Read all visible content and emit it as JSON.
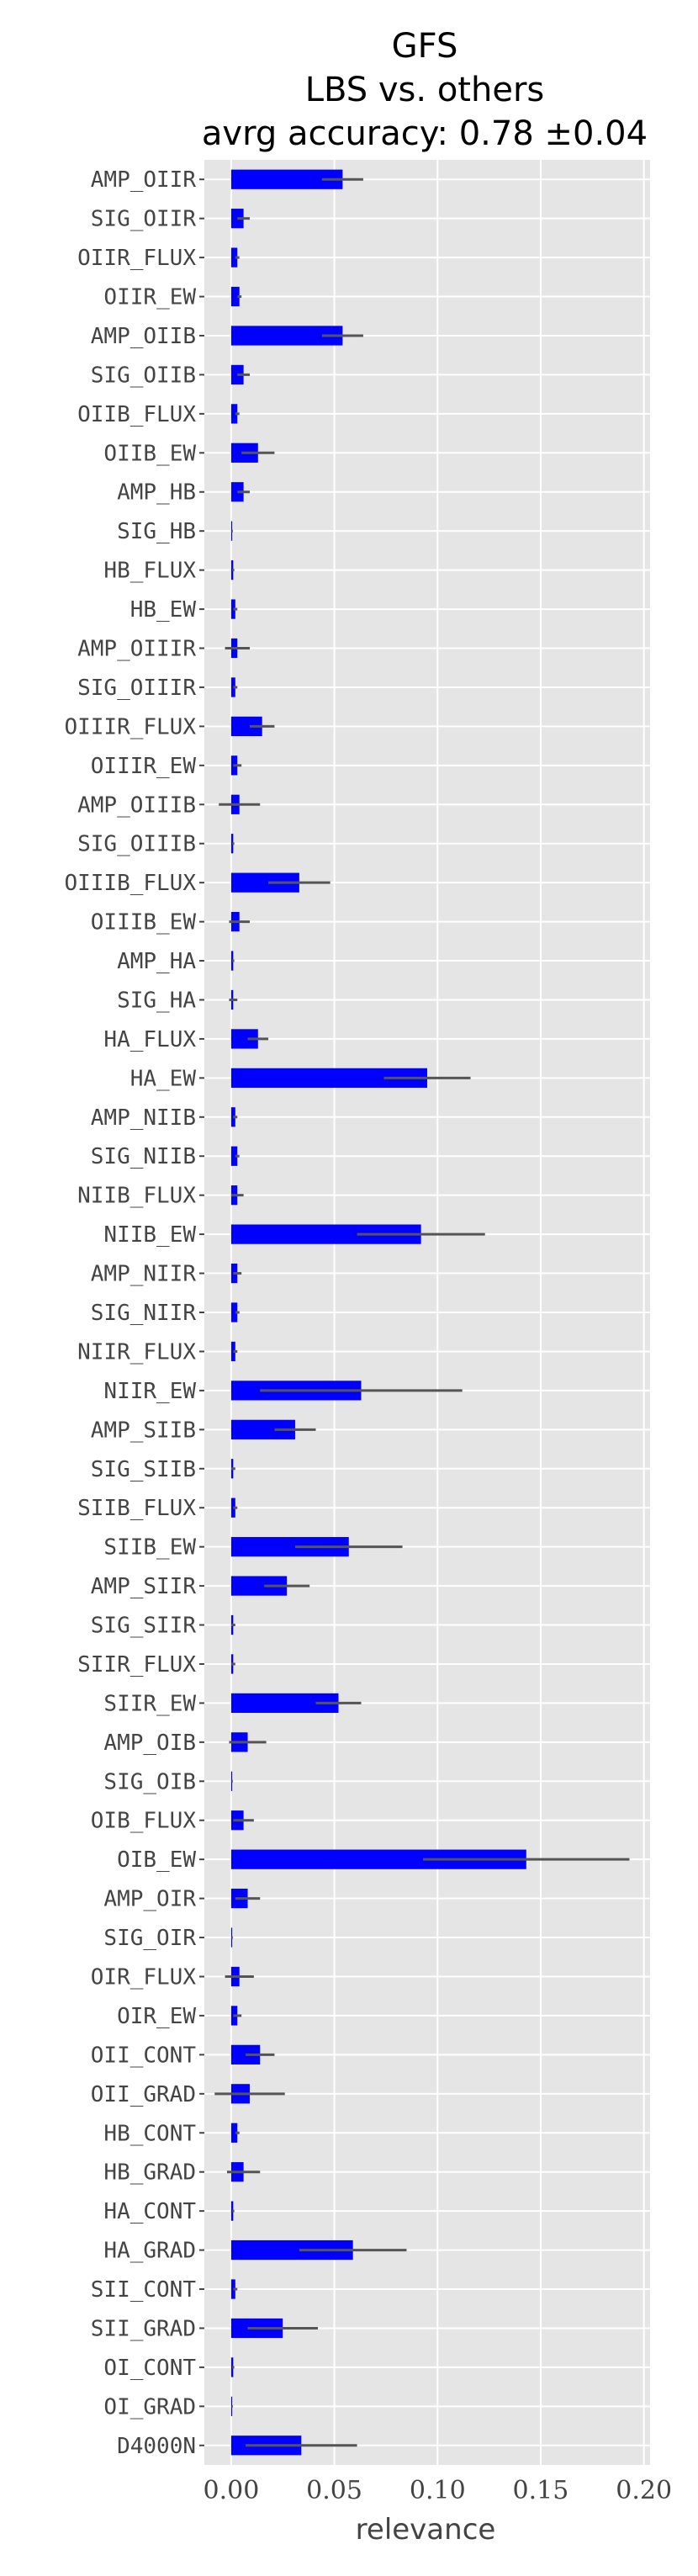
{
  "chart_data": {
    "type": "bar",
    "orientation": "horizontal",
    "title_lines": [
      "GFS",
      "LBS vs. others",
      "avrg accuracy: 0.78 ±0.04"
    ],
    "xlabel": "relevance",
    "ylabel": "",
    "xlim": [
      -0.013,
      0.203
    ],
    "xticks": [
      0.0,
      0.05,
      0.1,
      0.15,
      0.2
    ],
    "xtick_labels": [
      "0.00",
      "0.05",
      "0.10",
      "0.15",
      "0.20"
    ],
    "grid": true,
    "bar_color": "#0000ff",
    "error_color": "#555555",
    "background_color": "#e5e5e5",
    "categories": [
      "AMP_OIIR",
      "SIG_OIIR",
      "OIIR_FLUX",
      "OIIR_EW",
      "AMP_OIIB",
      "SIG_OIIB",
      "OIIB_FLUX",
      "OIIB_EW",
      "AMP_HB",
      "SIG_HB",
      "HB_FLUX",
      "HB_EW",
      "AMP_OIIIR",
      "SIG_OIIIR",
      "OIIIR_FLUX",
      "OIIIR_EW",
      "AMP_OIIIB",
      "SIG_OIIIB",
      "OIIIB_FLUX",
      "OIIIB_EW",
      "AMP_HA",
      "SIG_HA",
      "HA_FLUX",
      "HA_EW",
      "AMP_NIIB",
      "SIG_NIIB",
      "NIIB_FLUX",
      "NIIB_EW",
      "AMP_NIIR",
      "SIG_NIIR",
      "NIIR_FLUX",
      "NIIR_EW",
      "AMP_SIIB",
      "SIG_SIIB",
      "SIIB_FLUX",
      "SIIB_EW",
      "AMP_SIIR",
      "SIG_SIIR",
      "SIIR_FLUX",
      "SIIR_EW",
      "AMP_OIB",
      "SIG_OIB",
      "OIB_FLUX",
      "OIB_EW",
      "AMP_OIR",
      "SIG_OIR",
      "OIR_FLUX",
      "OIR_EW",
      "OII_CONT",
      "OII_GRAD",
      "HB_CONT",
      "HB_GRAD",
      "HA_CONT",
      "HA_GRAD",
      "SII_CONT",
      "SII_GRAD",
      "OI_CONT",
      "OI_GRAD",
      "D4000N"
    ],
    "values": [
      0.054,
      0.006,
      0.003,
      0.004,
      0.054,
      0.006,
      0.003,
      0.013,
      0.006,
      0.0005,
      0.001,
      0.002,
      0.003,
      0.002,
      0.015,
      0.003,
      0.004,
      0.001,
      0.033,
      0.004,
      0.001,
      0.001,
      0.013,
      0.095,
      0.002,
      0.003,
      0.003,
      0.092,
      0.003,
      0.003,
      0.002,
      0.063,
      0.031,
      0.001,
      0.002,
      0.057,
      0.027,
      0.001,
      0.001,
      0.052,
      0.008,
      0.0005,
      0.006,
      0.143,
      0.008,
      0.0005,
      0.004,
      0.003,
      0.014,
      0.009,
      0.003,
      0.006,
      0.001,
      0.059,
      0.002,
      0.025,
      0.001,
      0.0005,
      0.034
    ],
    "errors": [
      0.01,
      0.003,
      0.001,
      0.001,
      0.01,
      0.003,
      0.001,
      0.008,
      0.003,
      0.0003,
      0.0005,
      0.001,
      0.006,
      0.001,
      0.006,
      0.002,
      0.01,
      0.0005,
      0.015,
      0.005,
      0.0005,
      0.002,
      0.005,
      0.021,
      0.001,
      0.001,
      0.003,
      0.031,
      0.002,
      0.001,
      0.001,
      0.049,
      0.01,
      0.001,
      0.001,
      0.026,
      0.011,
      0.001,
      0.001,
      0.011,
      0.009,
      0.0003,
      0.005,
      0.05,
      0.006,
      0.0003,
      0.007,
      0.002,
      0.007,
      0.017,
      0.001,
      0.008,
      0.0005,
      0.026,
      0.001,
      0.017,
      0.0005,
      0.0003,
      0.027
    ]
  }
}
